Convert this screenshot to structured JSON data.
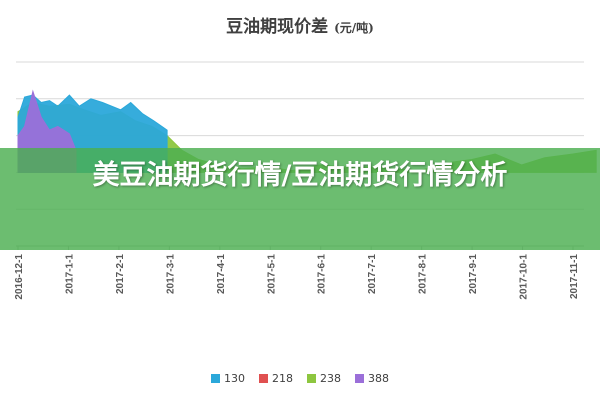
{
  "overlay": {
    "title": "美豆油期货行情/豆油期货行情分析"
  },
  "chart_data": {
    "type": "area",
    "title": "豆油期现价差",
    "title_unit": "(元/吨)",
    "xlabel": "",
    "ylabel": "",
    "x_ticks": [
      "2016-12-1",
      "2017-1-1",
      "2017-2-1",
      "2017-3-1",
      "2017-4-1",
      "2017-5-1",
      "2017-6-1",
      "2017-7-1",
      "2017-8-1",
      "2017-9-1",
      "2017-10-1",
      "2017-11-1"
    ],
    "xlim": [
      "2016-12-01",
      "2017-11-01"
    ],
    "ylim": [
      -400,
      600
    ],
    "y_gridlines": [
      600,
      400,
      200,
      0,
      -200,
      -400
    ],
    "grid": true,
    "legend_position": "bottom",
    "series": [
      {
        "name": "130",
        "color": "#2BA8DA",
        "x": [
          "2016-12-01",
          "2016-12-05",
          "2016-12-10",
          "2016-12-15",
          "2016-12-20",
          "2016-12-25",
          "2017-01-01",
          "2017-01-07",
          "2017-01-14",
          "2017-01-21",
          "2017-02-01",
          "2017-02-07",
          "2017-02-14",
          "2017-02-21",
          "2017-03-01"
        ],
        "values": [
          300,
          410,
          420,
          380,
          390,
          360,
          420,
          360,
          400,
          380,
          340,
          380,
          320,
          280,
          230
        ]
      },
      {
        "name": "218",
        "color": "#E05050",
        "x": [],
        "values": []
      },
      {
        "name": "238",
        "color": "#8DC63F",
        "x": [
          "2016-12-01",
          "2016-12-10",
          "2016-12-20",
          "2017-01-01",
          "2017-01-10",
          "2017-01-20",
          "2017-02-01",
          "2017-02-10",
          "2017-02-20",
          "2017-03-01",
          "2017-03-10",
          "2017-03-20",
          "2017-04-01",
          "2017-04-15",
          "2017-05-01",
          "2017-05-15",
          "2017-06-01",
          "2017-06-15",
          "2017-07-01",
          "2017-07-15",
          "2017-08-01",
          "2017-08-15",
          "2017-09-01",
          "2017-09-15",
          "2017-10-01",
          "2017-10-15",
          "2017-11-01",
          "2017-11-15"
        ],
        "values": [
          330,
          380,
          360,
          370,
          340,
          310,
          330,
          280,
          250,
          200,
          120,
          70,
          40,
          20,
          30,
          10,
          40,
          30,
          30,
          20,
          10,
          50,
          70,
          100,
          40,
          80,
          100,
          120
        ]
      },
      {
        "name": "388",
        "color": "#9B6FD9",
        "x": [
          "2016-12-01",
          "2016-12-05",
          "2016-12-10",
          "2016-12-15",
          "2016-12-20",
          "2016-12-25",
          "2017-01-01",
          "2017-01-05"
        ],
        "values": [
          200,
          250,
          440,
          300,
          230,
          250,
          210,
          120
        ]
      }
    ]
  }
}
